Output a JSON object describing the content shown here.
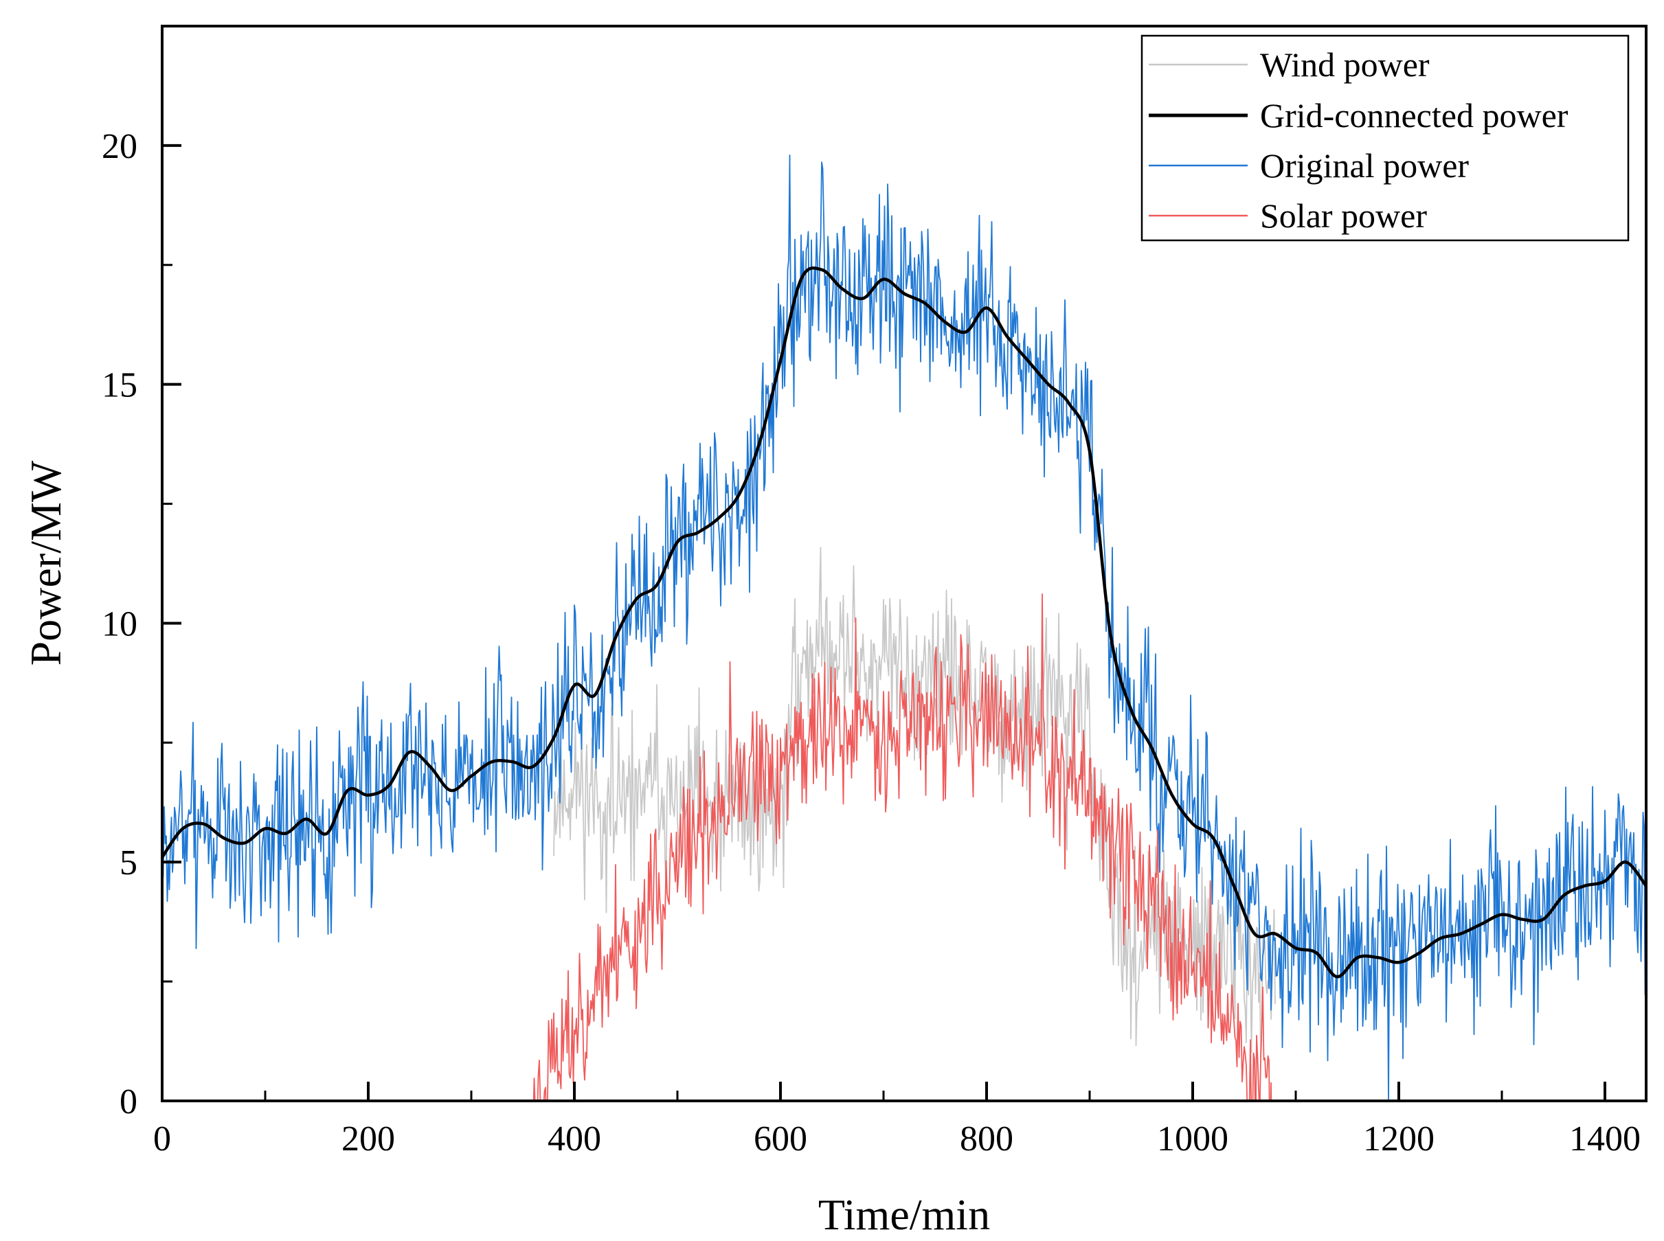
{
  "chart_data": {
    "type": "line",
    "title": "",
    "xlabel": "Time/min",
    "ylabel": "Power/MW",
    "xlim": [
      0,
      1440
    ],
    "ylim": [
      0,
      22.5
    ],
    "xticks": [
      0,
      200,
      400,
      600,
      800,
      1000,
      1200,
      1400
    ],
    "xtick_labels": [
      "0",
      "200",
      "400",
      "600",
      "800",
      "1000",
      "1200",
      "1400"
    ],
    "yticks": [
      0,
      5,
      10,
      15,
      20
    ],
    "ytick_labels": [
      "0",
      "5",
      "10",
      "15",
      "20"
    ],
    "minor_x_step": 100,
    "minor_y_step": 2.5,
    "grid": false,
    "legend_position": "top-right",
    "series": [
      {
        "name": "Wind power",
        "color": "#c8c8c8",
        "style": "noisy",
        "noise": 0.85,
        "seed": 11,
        "x": [
          380,
          400,
          420,
          440,
          460,
          480,
          500,
          520,
          540,
          560,
          580,
          600,
          620,
          640,
          660,
          680,
          700,
          720,
          740,
          760,
          780,
          800,
          820,
          840,
          860,
          880,
          900,
          920,
          940,
          960,
          980,
          1000,
          1020,
          1040,
          1060,
          1080
        ],
        "values": [
          6.2,
          6.7,
          6.3,
          5.9,
          6.4,
          6.6,
          6.0,
          6.4,
          5.8,
          6.3,
          6.0,
          6.2,
          9.3,
          9.6,
          9.4,
          9.3,
          9.1,
          9.0,
          8.6,
          8.8,
          8.5,
          8.4,
          8.1,
          8.0,
          8.3,
          8.1,
          7.7,
          4.0,
          3.2,
          3.3,
          3.5,
          3.0,
          3.3,
          3.1,
          2.5,
          2.6
        ]
      },
      {
        "name": "Grid-connected power",
        "color": "#000000",
        "style": "smooth",
        "x": [
          0,
          20,
          40,
          60,
          80,
          100,
          120,
          140,
          160,
          180,
          200,
          220,
          240,
          260,
          280,
          300,
          320,
          340,
          360,
          380,
          400,
          420,
          440,
          460,
          480,
          500,
          520,
          540,
          560,
          580,
          600,
          620,
          640,
          660,
          680,
          700,
          720,
          740,
          760,
          780,
          800,
          820,
          840,
          860,
          880,
          900,
          920,
          940,
          960,
          980,
          1000,
          1020,
          1040,
          1060,
          1080,
          1100,
          1120,
          1140,
          1160,
          1180,
          1200,
          1220,
          1240,
          1260,
          1280,
          1300,
          1320,
          1340,
          1360,
          1380,
          1400,
          1420,
          1440
        ],
        "values": [
          5.1,
          5.7,
          5.8,
          5.5,
          5.4,
          5.7,
          5.6,
          5.9,
          5.6,
          6.5,
          6.4,
          6.6,
          7.3,
          7.0,
          6.5,
          6.8,
          7.1,
          7.1,
          7.0,
          7.6,
          8.7,
          8.5,
          9.7,
          10.5,
          10.8,
          11.7,
          11.9,
          12.2,
          12.7,
          13.8,
          15.5,
          17.2,
          17.4,
          17.0,
          16.8,
          17.2,
          16.9,
          16.7,
          16.3,
          16.1,
          16.6,
          16.0,
          15.5,
          15.0,
          14.6,
          13.6,
          9.8,
          8.2,
          7.4,
          6.4,
          5.8,
          5.5,
          4.5,
          3.5,
          3.5,
          3.2,
          3.1,
          2.6,
          3.0,
          3.0,
          2.9,
          3.1,
          3.4,
          3.5,
          3.7,
          3.9,
          3.8,
          3.8,
          4.3,
          4.5,
          4.6,
          5.0,
          4.5
        ]
      },
      {
        "name": "Original power",
        "color": "#1f78d4",
        "style": "noisy",
        "noise": 0.95,
        "seed": 7,
        "x": [
          0,
          20,
          40,
          60,
          80,
          100,
          120,
          140,
          160,
          180,
          200,
          220,
          240,
          260,
          280,
          300,
          320,
          340,
          360,
          380,
          400,
          420,
          440,
          460,
          480,
          500,
          520,
          540,
          560,
          580,
          600,
          620,
          640,
          660,
          680,
          700,
          720,
          740,
          760,
          780,
          800,
          820,
          840,
          860,
          880,
          900,
          920,
          940,
          960,
          980,
          1000,
          1020,
          1040,
          1060,
          1080,
          1100,
          1120,
          1140,
          1160,
          1180,
          1200,
          1220,
          1240,
          1260,
          1280,
          1300,
          1320,
          1340,
          1360,
          1380,
          1400,
          1420,
          1440
        ],
        "values": [
          5.1,
          5.7,
          5.8,
          5.5,
          5.4,
          5.7,
          5.6,
          5.9,
          5.6,
          6.5,
          6.4,
          6.6,
          7.3,
          7.0,
          6.5,
          6.8,
          7.1,
          7.1,
          7.0,
          7.6,
          8.7,
          8.5,
          9.7,
          10.5,
          10.8,
          11.7,
          11.9,
          12.2,
          12.7,
          13.8,
          15.5,
          17.2,
          17.4,
          17.0,
          16.8,
          17.2,
          16.9,
          16.7,
          16.3,
          16.1,
          16.6,
          16.0,
          15.5,
          15.0,
          14.6,
          13.6,
          9.8,
          8.2,
          7.4,
          6.4,
          5.8,
          5.5,
          4.5,
          3.5,
          3.5,
          3.2,
          3.1,
          2.6,
          3.0,
          3.0,
          2.9,
          3.1,
          3.4,
          3.5,
          3.7,
          3.9,
          3.8,
          3.8,
          4.3,
          4.5,
          4.6,
          5.0,
          4.5
        ]
      },
      {
        "name": "Solar power",
        "color": "#f05a5a",
        "style": "noisy",
        "noise": 0.75,
        "seed": 23,
        "x": [
          360,
          380,
          400,
          420,
          440,
          460,
          480,
          500,
          520,
          540,
          560,
          580,
          600,
          620,
          640,
          660,
          680,
          700,
          720,
          740,
          760,
          780,
          800,
          820,
          840,
          860,
          880,
          900,
          920,
          940,
          960,
          980,
          1000,
          1020,
          1040,
          1060,
          1080
        ],
        "values": [
          0.0,
          0.8,
          1.6,
          2.3,
          3.0,
          3.6,
          4.3,
          4.9,
          5.5,
          5.9,
          6.4,
          6.8,
          7.0,
          7.6,
          7.7,
          7.8,
          7.8,
          7.9,
          8.0,
          8.0,
          8.0,
          8.0,
          7.9,
          7.8,
          7.5,
          7.1,
          6.8,
          6.3,
          5.6,
          4.9,
          4.1,
          3.4,
          3.0,
          2.3,
          1.4,
          0.6,
          0.2
        ]
      }
    ]
  }
}
